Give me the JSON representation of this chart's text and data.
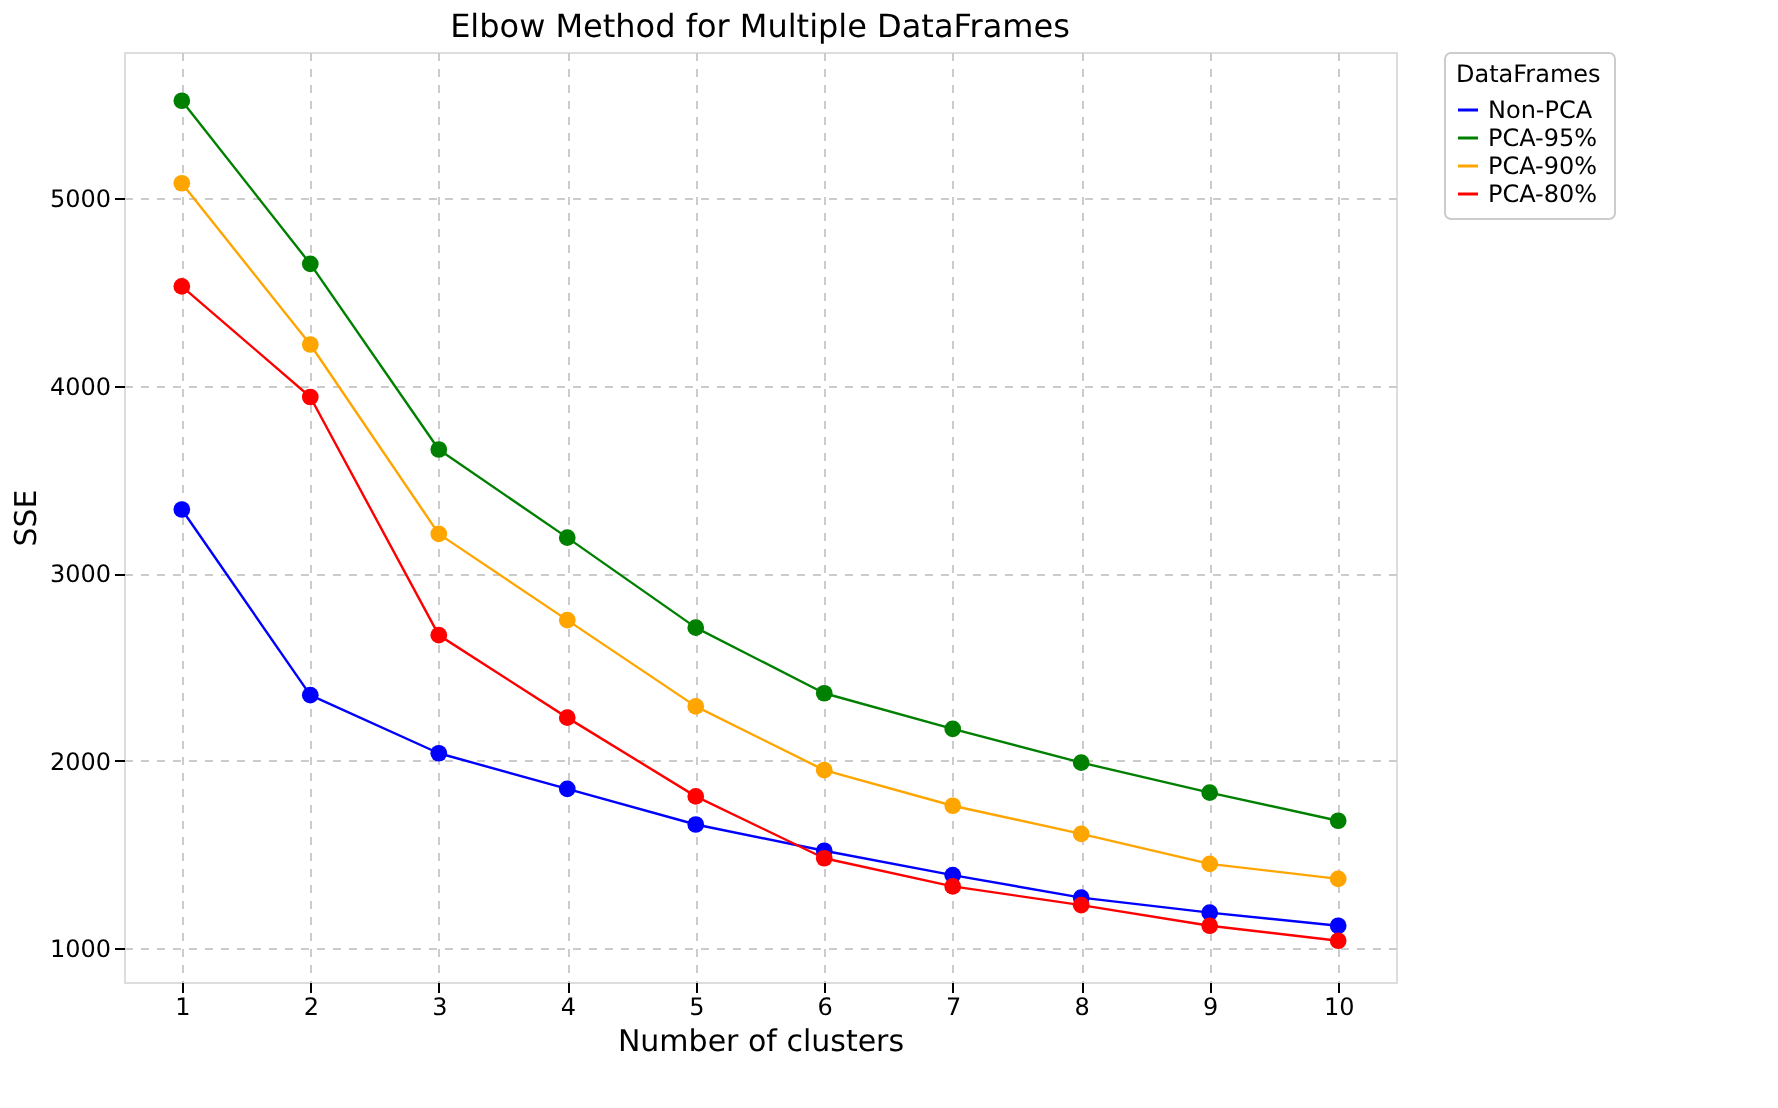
{
  "chart_data": {
    "type": "line",
    "title": "Elbow Method for Multiple DataFrames",
    "xlabel": "Number of clusters",
    "ylabel": "SSE",
    "legend_title": "DataFrames",
    "x": [
      1,
      2,
      3,
      4,
      5,
      6,
      7,
      8,
      9,
      10
    ],
    "series": [
      {
        "name": "Non-PCA",
        "color": "#0000ff",
        "values": [
          3340,
          2350,
          2040,
          1850,
          1660,
          1520,
          1390,
          1270,
          1190,
          1120
        ]
      },
      {
        "name": "PCA-95%",
        "color": "#008000",
        "values": [
          5520,
          4650,
          3660,
          3190,
          2710,
          2360,
          2170,
          1990,
          1830,
          1680
        ]
      },
      {
        "name": "PCA-90%",
        "color": "#ffa500",
        "values": [
          5080,
          4220,
          3210,
          2750,
          2290,
          1950,
          1760,
          1610,
          1450,
          1370
        ]
      },
      {
        "name": "PCA-80%",
        "color": "#ff0000",
        "values": [
          4530,
          3940,
          2670,
          2230,
          1810,
          1480,
          1330,
          1230,
          1120,
          1040
        ]
      }
    ],
    "xlim": [
      0.55,
      10.45
    ],
    "xticks": [
      1,
      2,
      3,
      4,
      5,
      6,
      7,
      8,
      9,
      10
    ],
    "ylim": [
      820,
      5780
    ],
    "yticks": [
      1000,
      2000,
      3000,
      4000,
      5000
    ],
    "grid": true,
    "legend": "top right",
    "marker": "circle",
    "line_style": "solid"
  }
}
